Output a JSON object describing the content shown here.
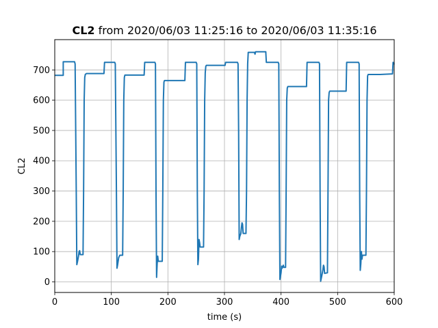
{
  "chart_data": {
    "type": "line",
    "title_bold": "CL2",
    "title_rest": " from 2020/06/03 11:25:16 to 2020/06/03 11:35:16",
    "xlabel": "time (s)",
    "ylabel": "CL2",
    "xlim": [
      0,
      600
    ],
    "ylim": [
      -35,
      800
    ],
    "xticks": [
      0,
      100,
      200,
      300,
      400,
      500,
      600
    ],
    "xtick_labels": [
      "0",
      "100",
      "200",
      "300",
      "400",
      "500",
      "600"
    ],
    "yticks": [
      0,
      100,
      200,
      300,
      400,
      500,
      600,
      700
    ],
    "ytick_labels": [
      "0",
      "100",
      "200",
      "300",
      "400",
      "500",
      "600",
      "700"
    ],
    "grid": true,
    "line_color": "#1f77b4",
    "series": [
      {
        "points": [
          [
            0,
            682
          ],
          [
            15,
            682
          ],
          [
            15,
            727
          ],
          [
            35,
            727
          ],
          [
            36,
            720
          ],
          [
            38,
            300
          ],
          [
            39,
            57
          ],
          [
            40,
            65
          ],
          [
            42,
            85
          ],
          [
            43,
            100
          ],
          [
            44,
            103
          ],
          [
            45,
            90
          ],
          [
            49,
            90
          ],
          [
            50,
            90
          ],
          [
            51,
            300
          ],
          [
            52,
            600
          ],
          [
            53,
            675
          ],
          [
            54,
            685
          ],
          [
            56,
            688
          ],
          [
            70,
            688
          ],
          [
            87,
            688
          ],
          [
            88,
            725
          ],
          [
            106,
            725
          ],
          [
            107,
            720
          ],
          [
            109,
            300
          ],
          [
            110,
            45
          ],
          [
            111,
            55
          ],
          [
            113,
            80
          ],
          [
            115,
            88
          ],
          [
            120,
            88
          ],
          [
            121,
            300
          ],
          [
            122,
            600
          ],
          [
            123,
            675
          ],
          [
            124,
            683
          ],
          [
            158,
            683
          ],
          [
            159,
            725
          ],
          [
            177,
            725
          ],
          [
            178,
            720
          ],
          [
            179,
            300
          ],
          [
            180,
            15
          ],
          [
            181,
            60
          ],
          [
            182,
            85
          ],
          [
            183,
            68
          ],
          [
            190,
            68
          ],
          [
            191,
            300
          ],
          [
            192,
            600
          ],
          [
            193,
            660
          ],
          [
            194,
            665
          ],
          [
            230,
            665
          ],
          [
            231,
            725
          ],
          [
            250,
            725
          ],
          [
            251,
            720
          ],
          [
            252,
            300
          ],
          [
            253,
            57
          ],
          [
            254,
            75
          ],
          [
            255,
            140
          ],
          [
            256,
            130
          ],
          [
            257,
            115
          ],
          [
            263,
            115
          ],
          [
            264,
            300
          ],
          [
            265,
            600
          ],
          [
            266,
            690
          ],
          [
            267,
            712
          ],
          [
            268,
            715
          ],
          [
            301,
            715
          ],
          [
            302,
            725
          ],
          [
            323,
            725
          ],
          [
            324,
            720
          ],
          [
            325,
            500
          ],
          [
            326,
            140
          ],
          [
            327,
            150
          ],
          [
            329,
            160
          ],
          [
            330,
            180
          ],
          [
            331,
            195
          ],
          [
            332,
            190
          ],
          [
            333,
            160
          ],
          [
            338,
            160
          ],
          [
            339,
            300
          ],
          [
            340,
            600
          ],
          [
            341,
            720
          ],
          [
            342,
            758
          ],
          [
            353,
            758
          ],
          [
            354,
            752
          ],
          [
            355,
            760
          ],
          [
            373,
            760
          ],
          [
            374,
            725
          ],
          [
            395,
            725
          ],
          [
            396,
            720
          ],
          [
            397,
            300
          ],
          [
            398,
            8
          ],
          [
            400,
            30
          ],
          [
            401,
            52
          ],
          [
            402,
            45
          ],
          [
            404,
            55
          ],
          [
            405,
            48
          ],
          [
            408,
            48
          ],
          [
            409,
            300
          ],
          [
            410,
            600
          ],
          [
            411,
            640
          ],
          [
            412,
            645
          ],
          [
            445,
            645
          ],
          [
            446,
            725
          ],
          [
            467,
            725
          ],
          [
            468,
            720
          ],
          [
            469,
            300
          ],
          [
            470,
            2
          ],
          [
            472,
            20
          ],
          [
            474,
            40
          ],
          [
            475,
            55
          ],
          [
            476,
            50
          ],
          [
            477,
            28
          ],
          [
            482,
            30
          ],
          [
            483,
            300
          ],
          [
            484,
            600
          ],
          [
            485,
            625
          ],
          [
            486,
            630
          ],
          [
            515,
            630
          ],
          [
            516,
            725
          ],
          [
            537,
            725
          ],
          [
            538,
            720
          ],
          [
            539,
            300
          ],
          [
            540,
            38
          ],
          [
            541,
            60
          ],
          [
            542,
            100
          ],
          [
            543,
            75
          ],
          [
            544,
            88
          ],
          [
            550,
            88
          ],
          [
            551,
            300
          ],
          [
            552,
            600
          ],
          [
            553,
            680
          ],
          [
            554,
            685
          ],
          [
            575,
            685
          ],
          [
            597,
            687
          ],
          [
            598,
            725
          ],
          [
            600,
            718
          ]
        ]
      }
    ]
  }
}
